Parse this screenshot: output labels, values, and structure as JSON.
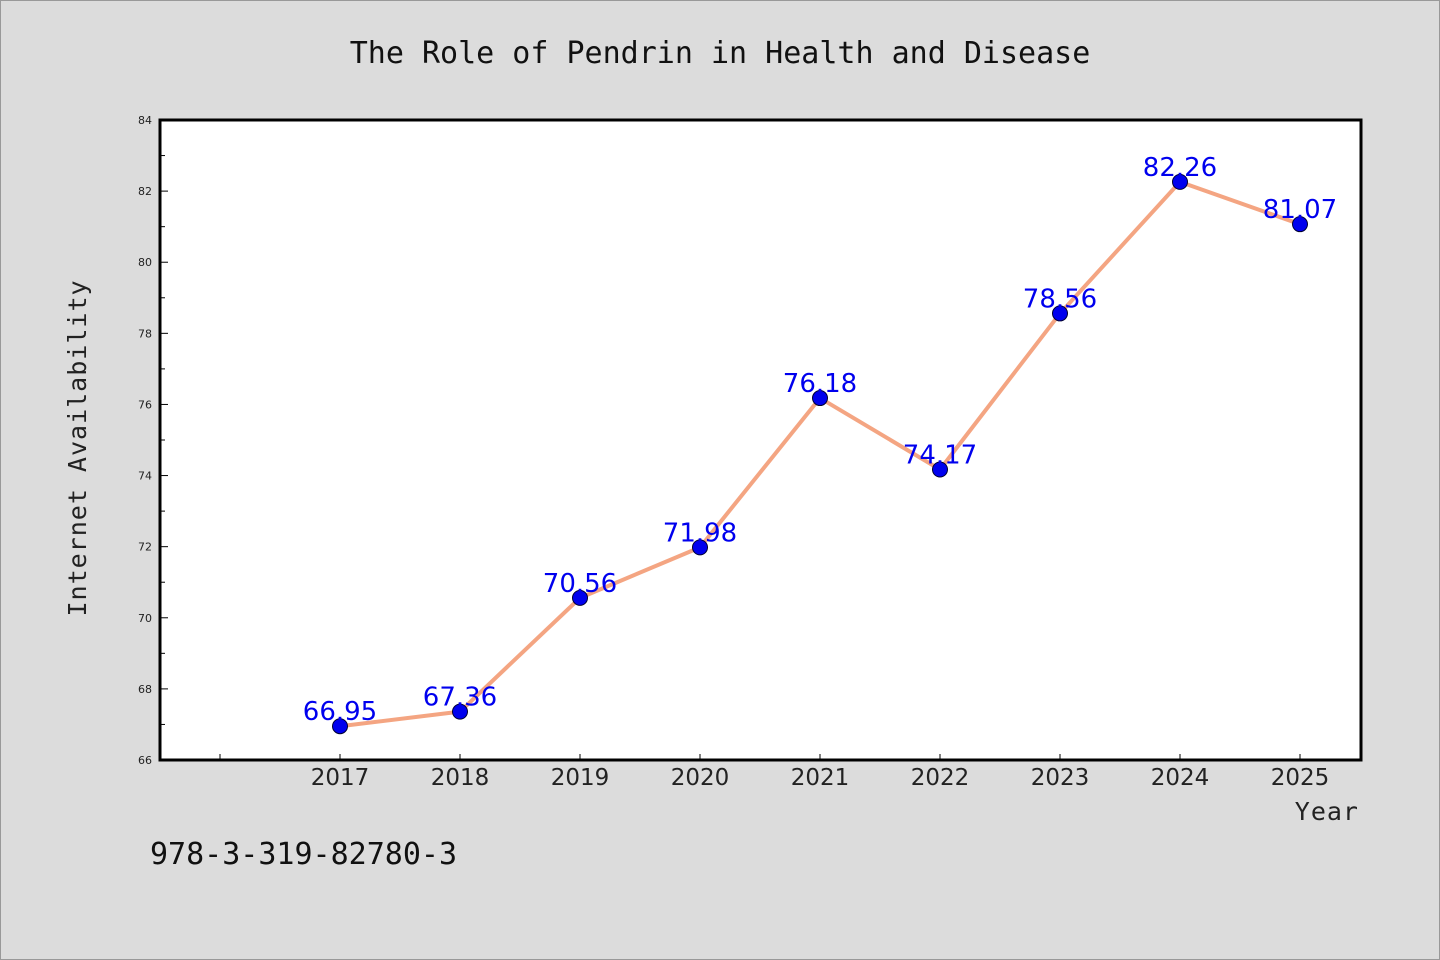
{
  "chart_data": {
    "type": "line",
    "title": "The Role of Pendrin in Health and Disease",
    "xlabel": "Year",
    "ylabel": "Internet Availability",
    "x": [
      "2017",
      "2018",
      "2019",
      "2020",
      "2021",
      "2022",
      "2023",
      "2024",
      "2025"
    ],
    "series": [
      {
        "values": [
          66.95,
          67.36,
          70.56,
          71.98,
          76.18,
          74.17,
          78.56,
          82.26,
          81.07
        ],
        "labels": [
          "66.95",
          "67.36",
          "70.56",
          "71.98",
          "76.18",
          "74.17",
          "78.56",
          "82.26",
          "81.07"
        ],
        "line_color": "#f4a582",
        "marker_color": "#0000ee"
      }
    ],
    "ylim": [
      66,
      84
    ],
    "yticks": [
      "66",
      "68",
      "70",
      "72",
      "74",
      "76",
      "78",
      "80",
      "82",
      "84"
    ],
    "grid": false,
    "legend": false
  },
  "footer": {
    "text": "978-3-319-82780-3"
  },
  "colors": {
    "background": "#dcdcdc",
    "plot_background": "#ffffff",
    "axis": "#000000",
    "label_color": "#0000ee",
    "line_color": "#f4a582"
  }
}
